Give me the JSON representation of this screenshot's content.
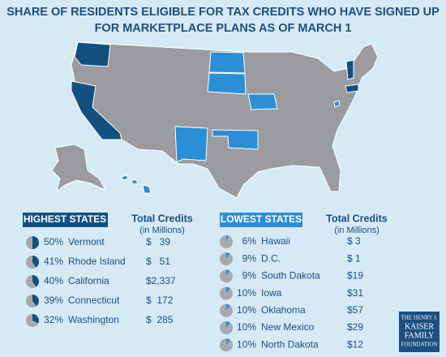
{
  "title": [
    "SHARE OF RESIDENTS ELIGIBLE FOR TAX CREDITS WHO HAVE SIGNED UP",
    "FOR MARKETPLACE PLANS AS OF MARCH 1"
  ],
  "highest": {
    "header": "HIGHEST STATES",
    "credits_header": "Total Credits",
    "credits_sub": "(in Millions)",
    "rows": [
      {
        "share": 50,
        "share_label": "50%",
        "state": "Vermont",
        "credits": "$   39"
      },
      {
        "share": 41,
        "share_label": "41%",
        "state": "Rhode Island",
        "credits": "$   51"
      },
      {
        "share": 40,
        "share_label": "40%",
        "state": "California",
        "credits": "$2,337"
      },
      {
        "share": 39,
        "share_label": "39%",
        "state": "Connecticut",
        "credits": "$  172"
      },
      {
        "share": 32,
        "share_label": "32%",
        "state": "Washington",
        "credits": "$  285"
      }
    ]
  },
  "lowest": {
    "header": "LOWEST STATES",
    "credits_header": "Total Credits",
    "credits_sub": "(in Millions)",
    "rows": [
      {
        "share": 6,
        "share_label": "6%",
        "state": "Hawaii",
        "credits": "$ 3"
      },
      {
        "share": 9,
        "share_label": "9%",
        "state": "D.C.",
        "credits": "$ 1"
      },
      {
        "share": 9,
        "share_label": "9%",
        "state": "South Dakota",
        "credits": "$19"
      },
      {
        "share": 10,
        "share_label": "10%",
        "state": "Iowa",
        "credits": "$31"
      },
      {
        "share": 10,
        "share_label": "10%",
        "state": "Oklahoma",
        "credits": "$57"
      },
      {
        "share": 10,
        "share_label": "10%",
        "state": "New Mexico",
        "credits": "$29"
      },
      {
        "share": 10,
        "share_label": "10%",
        "state": "North Dakota",
        "credits": "$12"
      }
    ]
  },
  "logo": [
    "THE HENRY J.",
    "KAISER",
    "FAMILY",
    "FOUNDATION"
  ]
}
